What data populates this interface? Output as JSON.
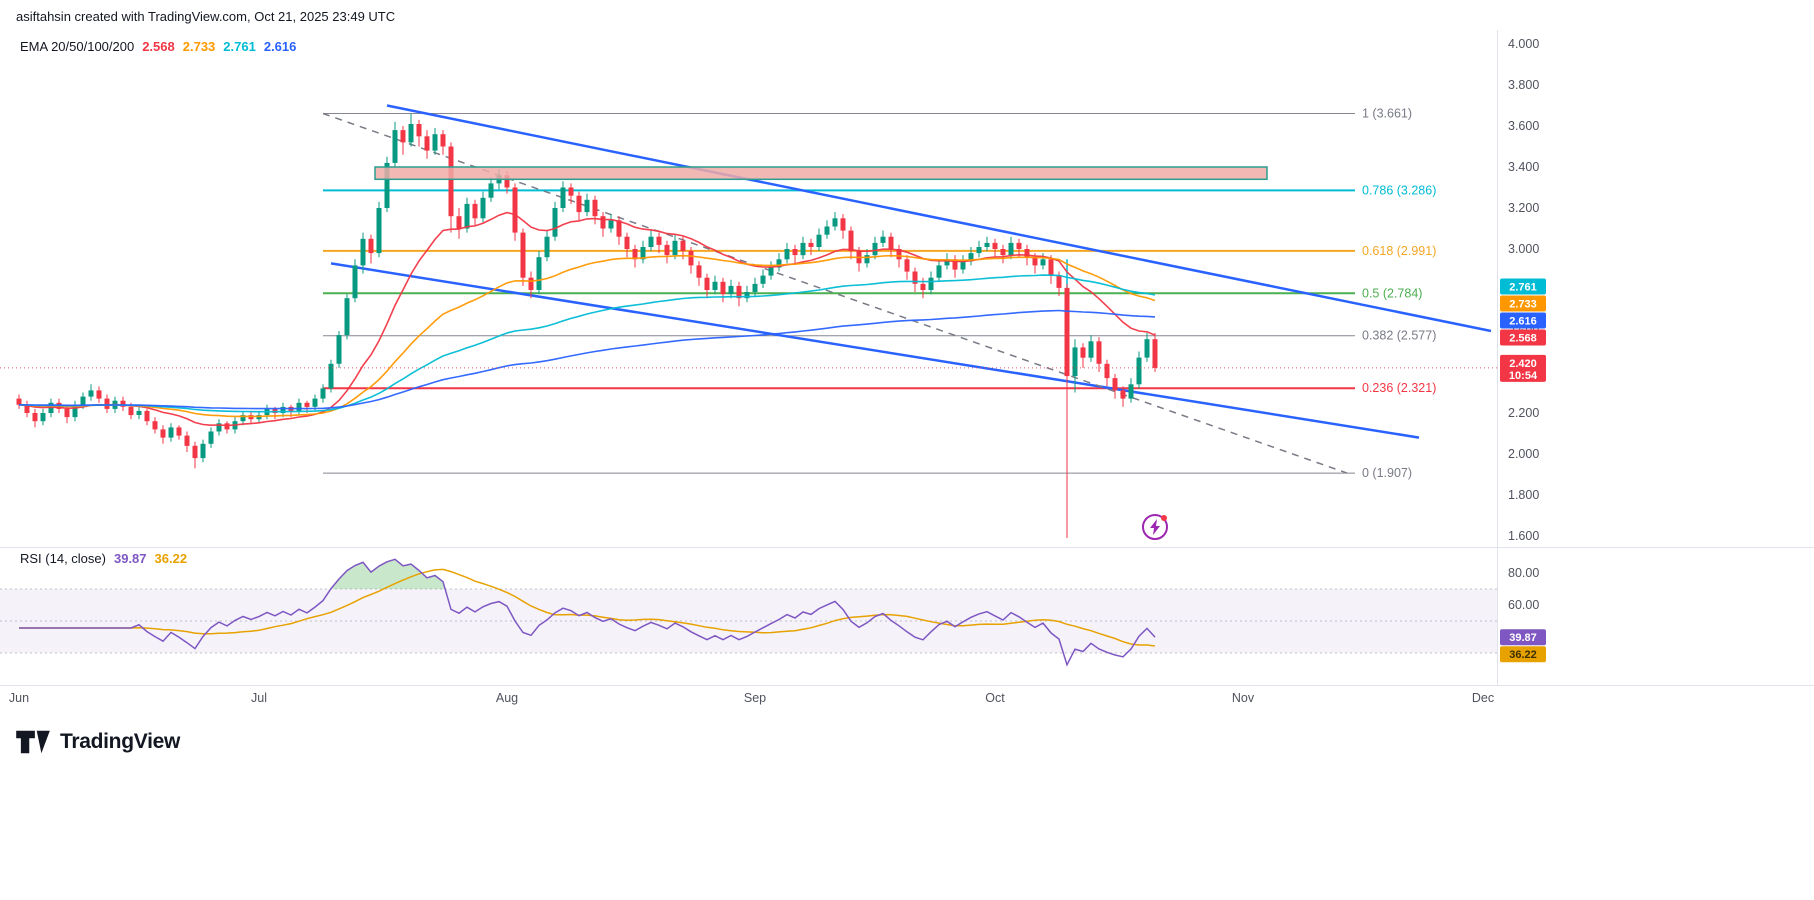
{
  "header": {
    "attribution": "asiftahsin created with TradingView.com, Oct 21, 2025 23:49 UTC"
  },
  "logo": {
    "text": "TradingView"
  },
  "chart_data": [
    {
      "type": "candlestick",
      "legend": {
        "label": "EMA 20/50/100/200",
        "values": [
          {
            "text": "2.568",
            "color": "#f23645"
          },
          {
            "text": "2.733",
            "color": "#ff9800"
          },
          {
            "text": "2.761",
            "color": "#00bcd4"
          },
          {
            "text": "2.616",
            "color": "#2962ff"
          }
        ]
      },
      "y_axis": {
        "min": 1.6,
        "max": 4.0,
        "tick_step": 0.2,
        "tick_labels": [
          "4.000",
          "3.800",
          "3.600",
          "3.400",
          "3.200",
          "3.000",
          "2.800",
          "2.600",
          "2.400",
          "2.200",
          "2.000",
          "1.800",
          "1.600"
        ]
      },
      "x_axis": {
        "month_labels": [
          "Jun",
          "Jul",
          "Aug",
          "Sep",
          "Oct",
          "Nov",
          "Dec"
        ],
        "month_start_indices": [
          0,
          30,
          61,
          92,
          122,
          153,
          183
        ]
      },
      "candles": [
        [
          2.27,
          2.29,
          2.22,
          2.24
        ],
        [
          2.24,
          2.26,
          2.18,
          2.2
        ],
        [
          2.2,
          2.22,
          2.13,
          2.16
        ],
        [
          2.16,
          2.22,
          2.14,
          2.2
        ],
        [
          2.2,
          2.27,
          2.18,
          2.25
        ],
        [
          2.25,
          2.27,
          2.2,
          2.22
        ],
        [
          2.22,
          2.24,
          2.15,
          2.18
        ],
        [
          2.18,
          2.26,
          2.16,
          2.24
        ],
        [
          2.24,
          2.3,
          2.22,
          2.28
        ],
        [
          2.28,
          2.34,
          2.26,
          2.31
        ],
        [
          2.31,
          2.33,
          2.25,
          2.27
        ],
        [
          2.27,
          2.29,
          2.2,
          2.22
        ],
        [
          2.22,
          2.28,
          2.2,
          2.26
        ],
        [
          2.26,
          2.28,
          2.21,
          2.23
        ],
        [
          2.23,
          2.25,
          2.17,
          2.19
        ],
        [
          2.19,
          2.23,
          2.17,
          2.21
        ],
        [
          2.21,
          2.22,
          2.14,
          2.16
        ],
        [
          2.16,
          2.18,
          2.1,
          2.12
        ],
        [
          2.12,
          2.14,
          2.05,
          2.08
        ],
        [
          2.08,
          2.15,
          2.06,
          2.13
        ],
        [
          2.13,
          2.14,
          2.07,
          2.09
        ],
        [
          2.09,
          2.11,
          2.01,
          2.04
        ],
        [
          2.04,
          2.06,
          1.93,
          1.98
        ],
        [
          1.98,
          2.07,
          1.96,
          2.05
        ],
        [
          2.05,
          2.13,
          2.03,
          2.11
        ],
        [
          2.11,
          2.17,
          2.09,
          2.15
        ],
        [
          2.15,
          2.16,
          2.1,
          2.12
        ],
        [
          2.12,
          2.18,
          2.1,
          2.16
        ],
        [
          2.16,
          2.21,
          2.14,
          2.19
        ],
        [
          2.19,
          2.21,
          2.15,
          2.17
        ],
        [
          2.17,
          2.21,
          2.15,
          2.19
        ],
        [
          2.19,
          2.24,
          2.17,
          2.22
        ],
        [
          2.22,
          2.23,
          2.17,
          2.2
        ],
        [
          2.2,
          2.25,
          2.18,
          2.23
        ],
        [
          2.23,
          2.24,
          2.18,
          2.21
        ],
        [
          2.21,
          2.27,
          2.19,
          2.25
        ],
        [
          2.25,
          2.26,
          2.2,
          2.23
        ],
        [
          2.23,
          2.29,
          2.21,
          2.27
        ],
        [
          2.27,
          2.34,
          2.25,
          2.32
        ],
        [
          2.32,
          2.46,
          2.3,
          2.44
        ],
        [
          2.44,
          2.6,
          2.42,
          2.58
        ],
        [
          2.58,
          2.78,
          2.56,
          2.76
        ],
        [
          2.76,
          2.95,
          2.74,
          2.92
        ],
        [
          2.92,
          3.08,
          2.88,
          3.05
        ],
        [
          3.05,
          3.07,
          2.93,
          2.98
        ],
        [
          2.98,
          3.23,
          2.96,
          3.2
        ],
        [
          3.2,
          3.45,
          3.18,
          3.42
        ],
        [
          3.42,
          3.62,
          3.4,
          3.58
        ],
        [
          3.58,
          3.6,
          3.46,
          3.52
        ],
        [
          3.52,
          3.66,
          3.5,
          3.61
        ],
        [
          3.61,
          3.63,
          3.5,
          3.55
        ],
        [
          3.55,
          3.58,
          3.44,
          3.48
        ],
        [
          3.48,
          3.59,
          3.46,
          3.56
        ],
        [
          3.56,
          3.58,
          3.46,
          3.5
        ],
        [
          3.5,
          3.52,
          3.08,
          3.16
        ],
        [
          3.16,
          3.2,
          3.05,
          3.1
        ],
        [
          3.1,
          3.25,
          3.08,
          3.22
        ],
        [
          3.22,
          3.24,
          3.11,
          3.15
        ],
        [
          3.15,
          3.28,
          3.13,
          3.25
        ],
        [
          3.25,
          3.35,
          3.23,
          3.32
        ],
        [
          3.32,
          3.39,
          3.29,
          3.36
        ],
        [
          3.36,
          3.38,
          3.27,
          3.3
        ],
        [
          3.3,
          3.32,
          3.04,
          3.08
        ],
        [
          3.08,
          3.1,
          2.82,
          2.86
        ],
        [
          2.86,
          2.89,
          2.76,
          2.8
        ],
        [
          2.8,
          2.99,
          2.78,
          2.96
        ],
        [
          2.96,
          3.09,
          2.94,
          3.06
        ],
        [
          3.06,
          3.23,
          3.04,
          3.2
        ],
        [
          3.2,
          3.33,
          3.18,
          3.3
        ],
        [
          3.3,
          3.32,
          3.22,
          3.26
        ],
        [
          3.26,
          3.28,
          3.14,
          3.18
        ],
        [
          3.18,
          3.27,
          3.16,
          3.24
        ],
        [
          3.24,
          3.26,
          3.12,
          3.16
        ],
        [
          3.16,
          3.18,
          3.06,
          3.1
        ],
        [
          3.1,
          3.17,
          3.08,
          3.14
        ],
        [
          3.14,
          3.16,
          3.02,
          3.06
        ],
        [
          3.06,
          3.08,
          2.96,
          3.0
        ],
        [
          3.0,
          3.02,
          2.91,
          2.95
        ],
        [
          2.95,
          3.04,
          2.93,
          3.01
        ],
        [
          3.01,
          3.09,
          2.99,
          3.06
        ],
        [
          3.06,
          3.08,
          2.98,
          3.02
        ],
        [
          3.02,
          3.04,
          2.93,
          2.97
        ],
        [
          2.97,
          3.07,
          2.95,
          3.04
        ],
        [
          3.04,
          3.06,
          2.95,
          2.99
        ],
        [
          2.99,
          3.01,
          2.88,
          2.92
        ],
        [
          2.92,
          2.94,
          2.82,
          2.86
        ],
        [
          2.86,
          2.88,
          2.76,
          2.8
        ],
        [
          2.8,
          2.87,
          2.78,
          2.84
        ],
        [
          2.84,
          2.86,
          2.74,
          2.78
        ],
        [
          2.78,
          2.85,
          2.76,
          2.82
        ],
        [
          2.82,
          2.84,
          2.72,
          2.76
        ],
        [
          2.76,
          2.82,
          2.74,
          2.79
        ],
        [
          2.79,
          2.86,
          2.77,
          2.83
        ],
        [
          2.83,
          2.9,
          2.81,
          2.87
        ],
        [
          2.87,
          2.94,
          2.85,
          2.91
        ],
        [
          2.91,
          2.98,
          2.89,
          2.95
        ],
        [
          2.95,
          3.03,
          2.93,
          3.0
        ],
        [
          3.0,
          3.02,
          2.93,
          2.97
        ],
        [
          2.97,
          3.06,
          2.95,
          3.03
        ],
        [
          3.03,
          3.05,
          2.97,
          3.01
        ],
        [
          3.01,
          3.1,
          2.99,
          3.07
        ],
        [
          3.07,
          3.14,
          3.05,
          3.11
        ],
        [
          3.11,
          3.18,
          3.09,
          3.15
        ],
        [
          3.15,
          3.17,
          3.05,
          3.09
        ],
        [
          3.09,
          3.11,
          2.95,
          2.99
        ],
        [
          2.99,
          3.01,
          2.89,
          2.93
        ],
        [
          2.93,
          3.0,
          2.91,
          2.97
        ],
        [
          2.97,
          3.06,
          2.95,
          3.03
        ],
        [
          3.03,
          3.09,
          3.01,
          3.06
        ],
        [
          3.06,
          3.08,
          2.96,
          3.0
        ],
        [
          3.0,
          3.02,
          2.91,
          2.95
        ],
        [
          2.95,
          2.97,
          2.85,
          2.89
        ],
        [
          2.89,
          2.91,
          2.79,
          2.83
        ],
        [
          2.83,
          2.86,
          2.76,
          2.8
        ],
        [
          2.8,
          2.89,
          2.78,
          2.86
        ],
        [
          2.86,
          2.95,
          2.84,
          2.92
        ],
        [
          2.92,
          2.98,
          2.9,
          2.95
        ],
        [
          2.95,
          2.97,
          2.86,
          2.9
        ],
        [
          2.9,
          2.97,
          2.88,
          2.94
        ],
        [
          2.94,
          3.01,
          2.92,
          2.98
        ],
        [
          2.98,
          3.04,
          2.96,
          3.01
        ],
        [
          3.01,
          3.06,
          2.99,
          3.03
        ],
        [
          3.03,
          3.05,
          2.96,
          3.0
        ],
        [
          3.0,
          3.02,
          2.93,
          2.97
        ],
        [
          2.97,
          3.06,
          2.95,
          3.03
        ],
        [
          3.03,
          3.05,
          2.96,
          3.0
        ],
        [
          3.0,
          3.02,
          2.92,
          2.96
        ],
        [
          2.96,
          2.98,
          2.88,
          2.92
        ],
        [
          2.92,
          2.98,
          2.9,
          2.95
        ],
        [
          2.95,
          2.97,
          2.83,
          2.87
        ],
        [
          2.87,
          2.89,
          2.77,
          2.81
        ],
        [
          2.81,
          2.83,
          1.59,
          2.38
        ],
        [
          2.38,
          2.56,
          2.3,
          2.52
        ],
        [
          2.52,
          2.54,
          2.42,
          2.47
        ],
        [
          2.47,
          2.58,
          2.45,
          2.55
        ],
        [
          2.55,
          2.57,
          2.4,
          2.44
        ],
        [
          2.44,
          2.46,
          2.33,
          2.37
        ],
        [
          2.37,
          2.39,
          2.27,
          2.31
        ],
        [
          2.31,
          2.33,
          2.23,
          2.27
        ],
        [
          2.27,
          2.37,
          2.25,
          2.34
        ],
        [
          2.34,
          2.5,
          2.32,
          2.47
        ],
        [
          2.47,
          2.59,
          2.45,
          2.56
        ],
        [
          2.56,
          2.59,
          2.4,
          2.42
        ]
      ],
      "emas": [
        {
          "period": 20,
          "color": "#f23645",
          "value": "2.568"
        },
        {
          "period": 50,
          "color": "#ff9800",
          "value": "2.733"
        },
        {
          "period": 100,
          "color": "#00bcd4",
          "value": "2.761"
        },
        {
          "period": 200,
          "color": "#2962ff",
          "value": "2.616"
        }
      ],
      "current_price": {
        "text": "2.420",
        "value": 2.42,
        "countdown": "10:54",
        "color": "#f23645"
      },
      "fib_retracement": {
        "start_index": 38,
        "end_index": 167,
        "levels": [
          {
            "label": "1 (3.661)",
            "ratio": 1,
            "price": 3.661,
            "color": "#787b86"
          },
          {
            "label": "0.786 (3.286)",
            "ratio": 0.786,
            "price": 3.286,
            "color": "#00bcd4"
          },
          {
            "label": "0.618 (2.991)",
            "ratio": 0.618,
            "price": 2.991,
            "color": "#f5a623"
          },
          {
            "label": "0.5 (2.784)",
            "ratio": 0.5,
            "price": 2.784,
            "color": "#4caf50"
          },
          {
            "label": "0.382 (2.577)",
            "ratio": 0.382,
            "price": 2.577,
            "color": "#787b86"
          },
          {
            "label": "0.236 (2.321)",
            "ratio": 0.236,
            "price": 2.321,
            "color": "#f23645"
          },
          {
            "label": "0 (1.907)",
            "ratio": 0,
            "price": 1.907,
            "color": "#787b86"
          }
        ]
      },
      "zone": {
        "start_index": 44.5,
        "end_index": 156,
        "price_top": 3.4,
        "price_bottom": 3.34,
        "fill": "#efaba7",
        "border": "#2a9d8f"
      },
      "trendlines": [
        {
          "name": "upper-descending-trendline",
          "color": "#2962ff",
          "style": "solid",
          "from": {
            "index": 46,
            "price": 3.7
          },
          "to": {
            "index": 184,
            "price": 2.6
          }
        },
        {
          "name": "lower-descending-trendline",
          "color": "#2962ff",
          "style": "solid",
          "from": {
            "index": 39,
            "price": 2.93
          },
          "to": {
            "index": 175,
            "price": 2.08
          }
        },
        {
          "name": "fib-baseline",
          "color": "#787b86",
          "style": "dashed",
          "from": {
            "index": 38,
            "price": 3.661
          },
          "to": {
            "index": 166,
            "price": 1.907
          }
        }
      ],
      "event_line": {
        "index": 131,
        "price_from": 2.95,
        "price_to": 2.38,
        "color": "#00bcd4"
      }
    },
    {
      "type": "line",
      "name": "RSI",
      "legend": {
        "label": "RSI (14, close)",
        "values": [
          {
            "text": "39.87",
            "color": "#7e57c2"
          },
          {
            "text": "36.22",
            "color": "#e8a200"
          }
        ]
      },
      "params": {
        "length": 14,
        "source": "close"
      },
      "series": [
        {
          "name": "RSI",
          "color": "#7e57c2",
          "last_value": 39.87
        },
        {
          "name": "RSI-based MA",
          "color": "#e8a200",
          "last_value": 36.22
        }
      ],
      "bands": {
        "upper": 70,
        "middle": 50,
        "lower": 30,
        "band_fill": "#7e57c2"
      },
      "overbought_fill": "#4caf50",
      "y_axis": {
        "tick_labels": [
          {
            "text": "80.00",
            "value": 80
          },
          {
            "text": "60.00",
            "value": 60
          }
        ]
      }
    }
  ]
}
